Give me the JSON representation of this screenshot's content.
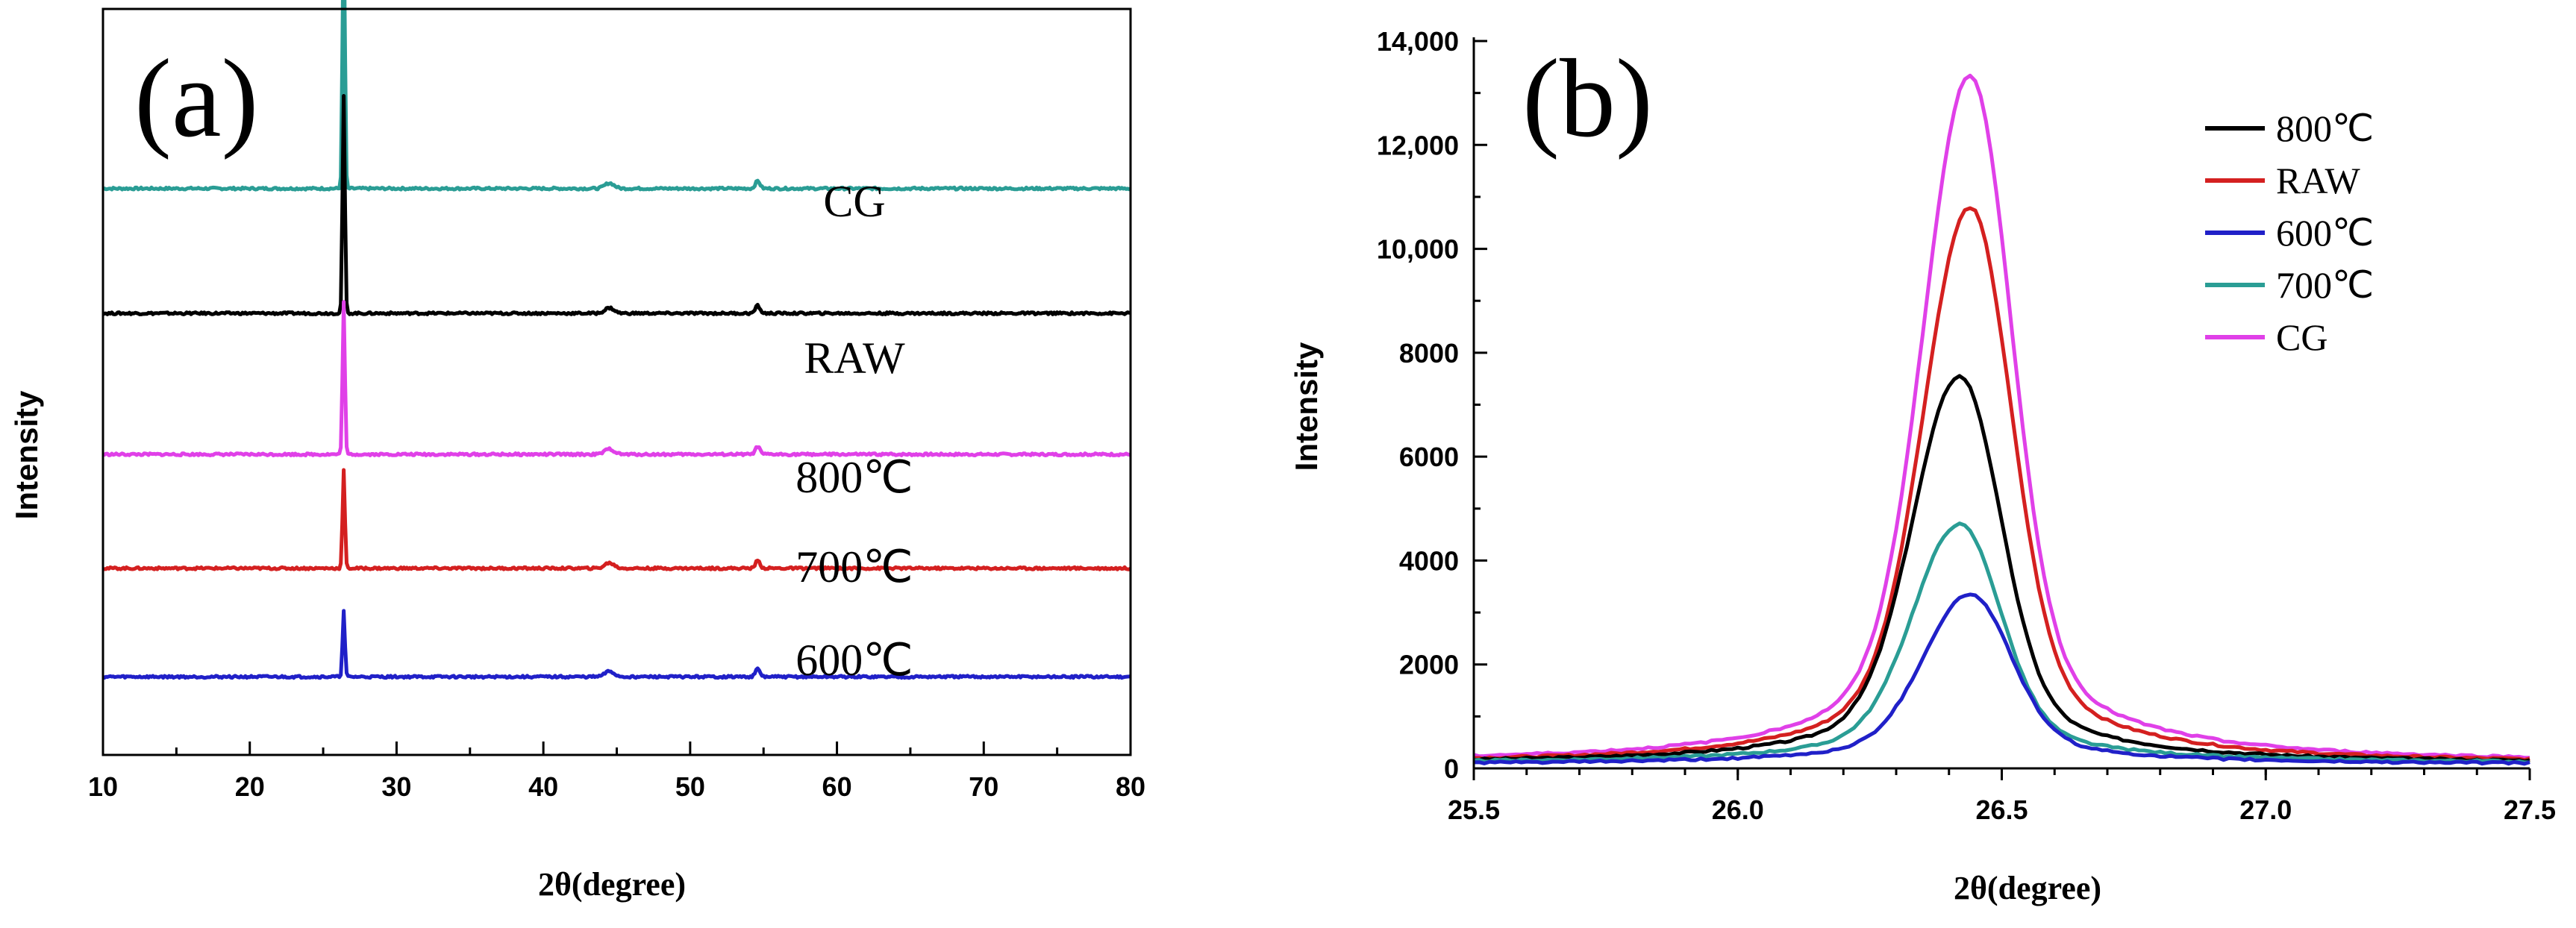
{
  "chart_data": [
    {
      "panel_label": "(a)",
      "type": "line",
      "xlabel": "2θ(degree)",
      "ylabel": "Intensity",
      "xlim": [
        10,
        80
      ],
      "x_ticks": [
        10,
        20,
        30,
        40,
        50,
        60,
        70,
        80
      ],
      "y_ticks_labeled": false,
      "peak_position_2theta": 26.4,
      "series": [
        {
          "name": "CG",
          "color": "#2a9d95",
          "baseline_level": 5.0,
          "peak_height": 2.55
        },
        {
          "name": "RAW",
          "color": "#000000",
          "baseline_level": 3.85,
          "peak_height": 2.0
        },
        {
          "name": "800℃",
          "color": "#e040e8",
          "baseline_level": 2.55,
          "peak_height": 1.4
        },
        {
          "name": "700℃",
          "color": "#d42020",
          "baseline_level": 1.5,
          "peak_height": 0.9
        },
        {
          "name": "600℃",
          "color": "#2020c8",
          "baseline_level": 0.5,
          "peak_height": 0.6
        }
      ]
    },
    {
      "panel_label": "(b)",
      "type": "line",
      "xlabel": "2θ(degree)",
      "ylabel": "Intensity",
      "xlim": [
        25.5,
        27.5
      ],
      "ylim": [
        0,
        14000
      ],
      "x_ticks": [
        "25.5",
        "26.0",
        "26.5",
        "27.0",
        "27.5"
      ],
      "y_ticks": [
        "0",
        "2000",
        "4000",
        "6000",
        "8000",
        "10,000",
        "12,000",
        "14,000"
      ],
      "legend_position": "top-right",
      "series": [
        {
          "name": "800℃",
          "color": "#000000",
          "peak_x": 26.42,
          "peak_y": 7550,
          "baseline": 100
        },
        {
          "name": "RAW",
          "color": "#d42020",
          "peak_x": 26.44,
          "peak_y": 10800,
          "baseline": 100
        },
        {
          "name": "600℃",
          "color": "#2020c8",
          "peak_x": 26.44,
          "peak_y": 3350,
          "baseline": 80
        },
        {
          "name": "700℃",
          "color": "#2a9d95",
          "peak_x": 26.42,
          "peak_y": 4700,
          "baseline": 100
        },
        {
          "name": "CG",
          "color": "#e040e8",
          "peak_x": 26.44,
          "peak_y": 13350,
          "baseline": 120
        }
      ]
    }
  ]
}
